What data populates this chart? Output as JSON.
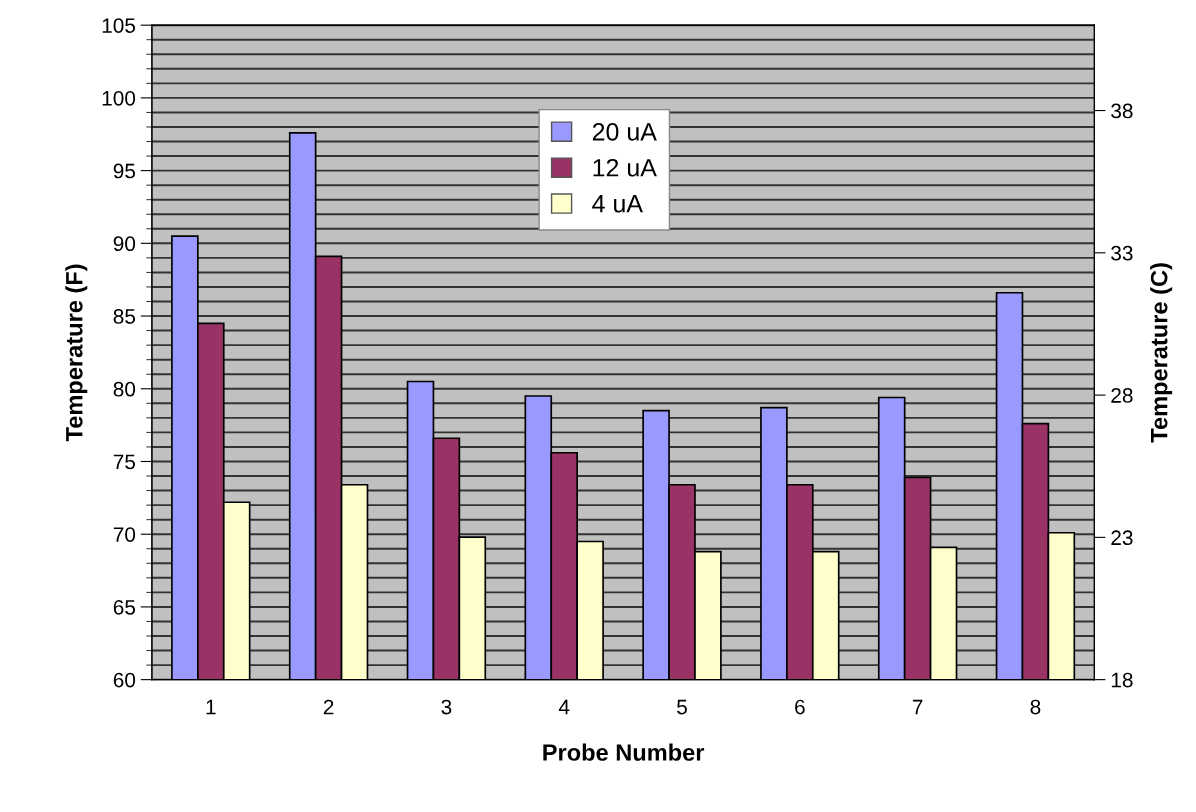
{
  "chart_data": {
    "type": "bar",
    "xlabel": "Probe Number",
    "ylabel": "Temperature (F)",
    "y2label": "Temperature (C)",
    "categories": [
      "1",
      "2",
      "3",
      "4",
      "5",
      "6",
      "7",
      "8"
    ],
    "series": [
      {
        "name": "20 uA",
        "color": "#9999ff",
        "values": [
          90.5,
          97.6,
          80.5,
          79.5,
          78.5,
          78.7,
          79.4,
          86.6
        ]
      },
      {
        "name": "12 uA",
        "color": "#993366",
        "values": [
          84.5,
          89.1,
          76.6,
          75.6,
          73.4,
          73.4,
          73.9,
          77.6
        ]
      },
      {
        "name": "4 uA",
        "color": "#ffffcc",
        "values": [
          72.2,
          73.4,
          69.8,
          69.5,
          68.8,
          68.8,
          69.1,
          70.1
        ]
      }
    ],
    "ylim": [
      60,
      105
    ],
    "yticks": [
      60,
      65,
      70,
      75,
      80,
      85,
      90,
      95,
      100,
      105
    ],
    "y2lim": [
      18,
      41
    ],
    "y2ticks": [
      18,
      23,
      28,
      33,
      38
    ],
    "grid": "y",
    "legend": "top"
  }
}
